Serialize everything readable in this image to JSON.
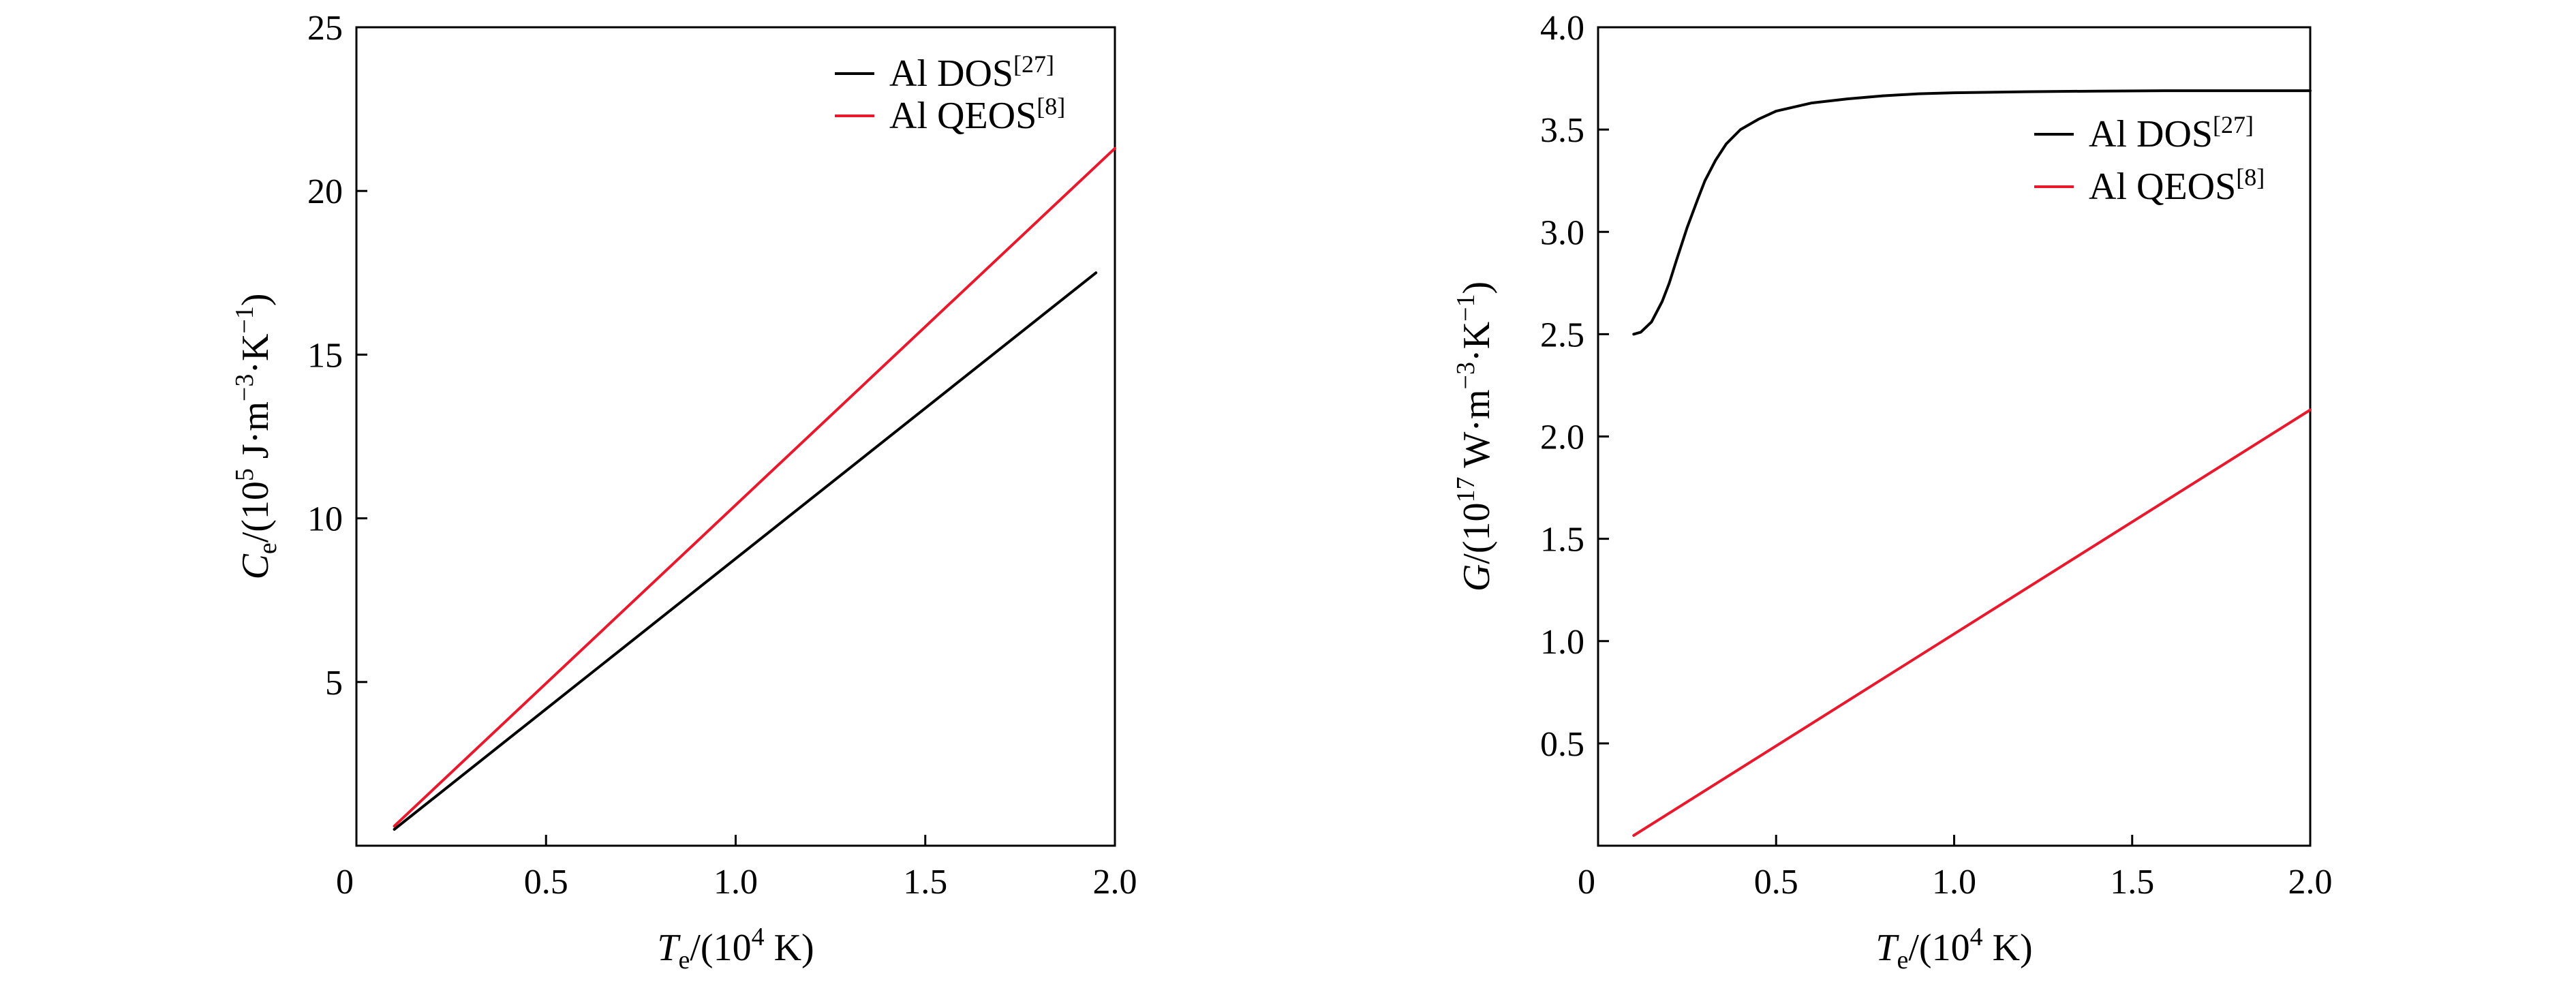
{
  "chart_data": [
    {
      "type": "line",
      "xlabel": {
        "main": "T",
        "sub": "e",
        "rest": "/(10",
        "sup": "4",
        "tail": " K)"
      },
      "ylabel": {
        "main": "C",
        "sub": "e",
        "rest": "/(10",
        "sup": "5",
        "tail": " J·m",
        "sup2": "−3",
        "mid": "·K",
        "sup3": "−1",
        "end": ")"
      },
      "xlim": [
        0,
        2.0
      ],
      "ylim": [
        0,
        25
      ],
      "xticks": [
        0,
        0.5,
        1.0,
        1.5,
        2.0
      ],
      "xtick_labels": [
        "0",
        "0.5",
        "1.0",
        "1.5",
        "2.0"
      ],
      "yticks": [
        5,
        10,
        15,
        20,
        25
      ],
      "ytick_labels": [
        "5",
        "10",
        "15",
        "20",
        "25"
      ],
      "origin_label": "0",
      "grid": false,
      "legend_position": "top-right",
      "series": [
        {
          "name": "Al DOS",
          "ref": "[27]",
          "color": "#000000",
          "x": [
            0.1,
            1.95
          ],
          "y": [
            0.5,
            17.5
          ]
        },
        {
          "name": "Al QEOS",
          "ref": "[8]",
          "color": "#e8192c",
          "x": [
            0.1,
            2.0
          ],
          "y": [
            0.6,
            21.3
          ]
        }
      ]
    },
    {
      "type": "line",
      "xlabel": {
        "main": "T",
        "sub": "e",
        "rest": "/(10",
        "sup": "4",
        "tail": " K)"
      },
      "ylabel": {
        "main": "G",
        "sub": "",
        "rest": "/(10",
        "sup": "17",
        "tail": " W·m",
        "sup2": "−3",
        "mid": "·K",
        "sup3": "−1",
        "end": ")"
      },
      "xlim": [
        0,
        2.0
      ],
      "ylim": [
        0,
        4.0
      ],
      "xticks": [
        0,
        0.5,
        1.0,
        1.5,
        2.0
      ],
      "xtick_labels": [
        "0",
        "0.5",
        "1.0",
        "1.5",
        "2.0"
      ],
      "yticks": [
        0.5,
        1.0,
        1.5,
        2.0,
        2.5,
        3.0,
        3.5,
        4.0
      ],
      "ytick_labels": [
        "0.5",
        "1.0",
        "1.5",
        "2.0",
        "2.5",
        "3.0",
        "3.5",
        "4.0"
      ],
      "origin_label": "0",
      "grid": false,
      "legend_position": "upper-right",
      "series": [
        {
          "name": "Al DOS",
          "ref": "[27]",
          "color": "#000000",
          "x": [
            0.1,
            0.12,
            0.15,
            0.18,
            0.2,
            0.22,
            0.25,
            0.28,
            0.3,
            0.33,
            0.36,
            0.4,
            0.45,
            0.5,
            0.55,
            0.6,
            0.7,
            0.8,
            0.9,
            1.0,
            1.2,
            1.4,
            1.6,
            1.8,
            2.0
          ],
          "y": [
            2.5,
            2.51,
            2.56,
            2.66,
            2.75,
            2.86,
            3.02,
            3.16,
            3.25,
            3.35,
            3.43,
            3.5,
            3.55,
            3.59,
            3.61,
            3.63,
            3.65,
            3.665,
            3.675,
            3.68,
            3.685,
            3.688,
            3.69,
            3.69,
            3.69
          ]
        },
        {
          "name": "Al QEOS",
          "ref": "[8]",
          "color": "#e8192c",
          "x": [
            0.1,
            2.0
          ],
          "y": [
            0.05,
            2.13
          ]
        }
      ]
    }
  ]
}
